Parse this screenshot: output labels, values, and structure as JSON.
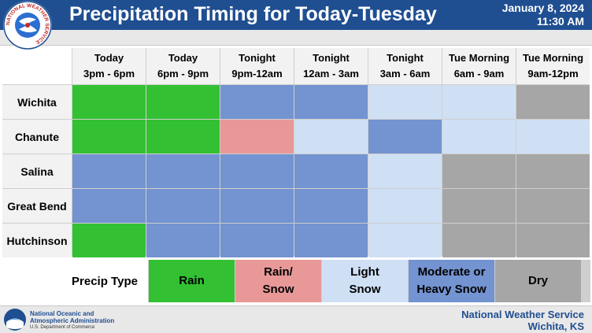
{
  "header": {
    "title": "Precipitation Timing for Today-Tuesday",
    "date": "January 8, 2024",
    "time": "11:30 AM",
    "logo_text": "NATIONAL WEATHER SERVICE"
  },
  "colors": {
    "rain": "#33c133",
    "rain_snow": "#e99898",
    "light_snow": "#cfe0f5",
    "mod_heavy_snow": "#7393d1",
    "dry": "#a6a6a6"
  },
  "columns": [
    {
      "line1": "Today",
      "line2": "3pm - 6pm"
    },
    {
      "line1": "Today",
      "line2": "6pm - 9pm"
    },
    {
      "line1": "Tonight",
      "line2": "9pm-12am"
    },
    {
      "line1": "Tonight",
      "line2": "12am - 3am"
    },
    {
      "line1": "Tonight",
      "line2": "3am - 6am"
    },
    {
      "line1": "Tue Morning",
      "line2": "6am - 9am"
    },
    {
      "line1": "Tue Morning",
      "line2": "9am-12pm"
    }
  ],
  "rows": [
    {
      "name": "Wichita",
      "cells": [
        "rain",
        "rain",
        "mod_heavy_snow",
        "mod_heavy_snow",
        "light_snow",
        "light_snow",
        "dry"
      ]
    },
    {
      "name": "Chanute",
      "cells": [
        "rain",
        "rain",
        "rain_snow",
        "light_snow",
        "mod_heavy_snow",
        "light_snow",
        "light_snow"
      ]
    },
    {
      "name": "Salina",
      "cells": [
        "mod_heavy_snow",
        "mod_heavy_snow",
        "mod_heavy_snow",
        "mod_heavy_snow",
        "light_snow",
        "dry",
        "dry"
      ]
    },
    {
      "name": "Great Bend",
      "cells": [
        "mod_heavy_snow",
        "mod_heavy_snow",
        "mod_heavy_snow",
        "mod_heavy_snow",
        "light_snow",
        "dry",
        "dry"
      ]
    },
    {
      "name": "Hutchinson",
      "cells": [
        "rain",
        "mod_heavy_snow",
        "mod_heavy_snow",
        "mod_heavy_snow",
        "light_snow",
        "dry",
        "dry"
      ]
    }
  ],
  "legend": {
    "title": "Precip Type",
    "items": [
      {
        "key": "rain",
        "line1": "Rain",
        "line2": ""
      },
      {
        "key": "rain_snow",
        "line1": "Rain/",
        "line2": "Snow"
      },
      {
        "key": "light_snow",
        "line1": "Light",
        "line2": "Snow"
      },
      {
        "key": "mod_heavy_snow",
        "line1": "Moderate or",
        "line2": "Heavy Snow"
      },
      {
        "key": "dry",
        "line1": "Dry",
        "line2": ""
      }
    ]
  },
  "footer": {
    "noaa_line1": "National Oceanic and",
    "noaa_line2": "Atmospheric Administration",
    "noaa_line3": "U.S. Department of Commerce",
    "nws_line1": "National Weather Service",
    "nws_line2": "Wichita, KS"
  }
}
